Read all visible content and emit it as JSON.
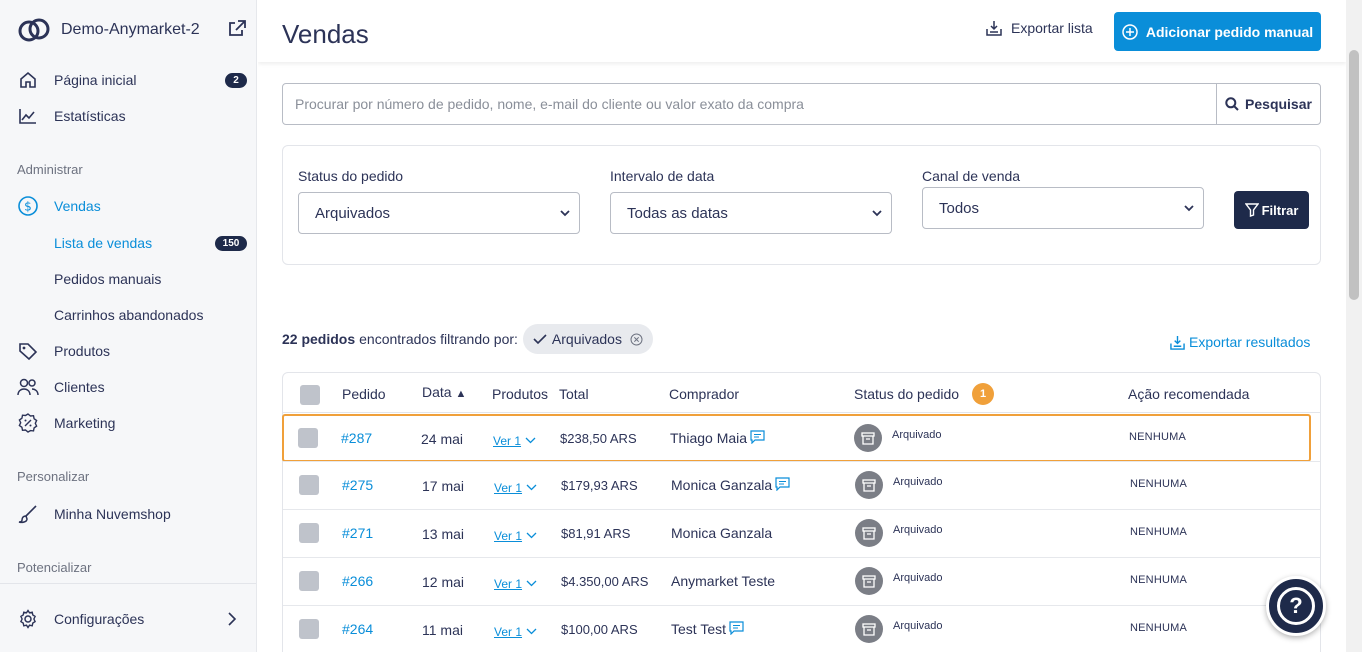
{
  "brand": {
    "name": "Demo-Anymarket-2"
  },
  "sidebar": {
    "items": [
      {
        "label": "Página inicial",
        "badge": "2",
        "icon": "home-icon"
      },
      {
        "label": "Estatísticas",
        "icon": "chart-icon"
      }
    ],
    "sections": {
      "administrar": "Administrar",
      "personalizar": "Personalizar",
      "potencializar": "Potencializar"
    },
    "vendas": {
      "label": "Vendas",
      "icon": "dollar-icon"
    },
    "sub_items": [
      {
        "label": "Lista de vendas",
        "badge": "150"
      },
      {
        "label": "Pedidos manuais"
      },
      {
        "label": "Carrinhos abandonados"
      }
    ],
    "admin_items": [
      {
        "label": "Produtos",
        "icon": "tag-icon"
      },
      {
        "label": "Clientes",
        "icon": "users-icon"
      },
      {
        "label": "Marketing",
        "icon": "discount-icon"
      }
    ],
    "minha_nuvemshop": "Minha Nuvemshop",
    "configuracoes": "Configurações"
  },
  "header": {
    "title": "Vendas",
    "export_list": "Exportar lista",
    "add_manual": "Adicionar pedido manual"
  },
  "search": {
    "placeholder": "Procurar por número de pedido, nome, e-mail do cliente ou valor exato da compra",
    "button": "Pesquisar"
  },
  "filters": {
    "status_label": "Status do pedido",
    "status_value": "Arquivados",
    "date_label": "Intervalo de data",
    "date_value": "Todas as datas",
    "channel_label": "Canal de venda",
    "channel_value": "Todos",
    "filter_button": "Filtrar"
  },
  "results": {
    "count": "22 pedidos",
    "text": "encontrados filtrando por:",
    "chip": "Arquivados",
    "export": "Exportar resultados"
  },
  "table": {
    "headers": {
      "pedido": "Pedido",
      "data": "Data",
      "data_sort": "▲",
      "produtos": "Produtos",
      "total": "Total",
      "comprador": "Comprador",
      "status": "Status do pedido",
      "status_badge": "1",
      "acao": "Ação recomendada"
    },
    "rows": [
      {
        "order": "#287",
        "date": "24 mai",
        "products": "Ver 1",
        "total": "$238,50 ARS",
        "buyer": "Thiago Maia",
        "note": true,
        "status": "Arquivado",
        "action": "NENHUMA"
      },
      {
        "order": "#275",
        "date": "17 mai",
        "products": "Ver 1",
        "total": "$179,93 ARS",
        "buyer": "Monica Ganzala",
        "note": true,
        "status": "Arquivado",
        "action": "NENHUMA"
      },
      {
        "order": "#271",
        "date": "13 mai",
        "products": "Ver 1",
        "total": "$81,91 ARS",
        "buyer": "Monica Ganzala",
        "note": false,
        "status": "Arquivado",
        "action": "NENHUMA"
      },
      {
        "order": "#266",
        "date": "12 mai",
        "products": "Ver 1",
        "total": "$4.350,00 ARS",
        "buyer": "Anymarket Teste",
        "note": false,
        "status": "Arquivado",
        "action": "NENHUMA"
      },
      {
        "order": "#264",
        "date": "11 mai",
        "products": "Ver 1",
        "total": "$100,00 ARS",
        "buyer": "Test Test",
        "note": true,
        "status": "Arquivado",
        "action": "NENHUMA"
      }
    ]
  },
  "help": {
    "label": "?"
  },
  "colors": {
    "accent": "#0a8ed9",
    "dark": "#1e2a4a",
    "highlight": "#f0a03a"
  }
}
